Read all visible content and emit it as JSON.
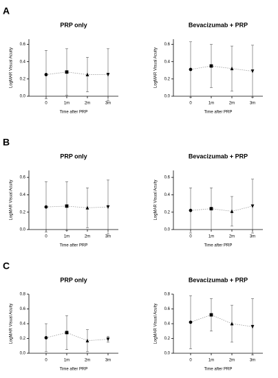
{
  "chart_data": [
    {
      "type": "line",
      "panel_label": "A",
      "title": "PRP only",
      "xlabel": "Time after PRP",
      "ylabel": "LogMAR Visual Acuity",
      "categories": [
        "0",
        "1m",
        "2m",
        "3m"
      ],
      "markers": [
        "circle",
        "square",
        "triangle-up",
        "triangle-down"
      ],
      "line_style": "dotted",
      "series": [
        {
          "color": "#000000",
          "values": [
            0.25,
            0.28,
            0.25,
            0.25
          ],
          "errors": [
            0.28,
            0.27,
            0.2,
            0.3
          ]
        }
      ],
      "ylim": [
        0,
        0.66
      ],
      "yticks": [
        {
          "value": 0,
          "label": "0.0"
        },
        0.2,
        0.4,
        0.6
      ]
    },
    {
      "type": "line",
      "title": "Bevacizumab + PRP",
      "xlabel": "Time after PRP",
      "ylabel": "LogMAR Visual Acuity",
      "categories": [
        "0",
        "1m",
        "2m",
        "3m"
      ],
      "markers": [
        "circle",
        "square",
        "triangle-up",
        "triangle-down"
      ],
      "line_style": "dotted",
      "series": [
        {
          "color": "#000000",
          "values": [
            0.31,
            0.35,
            0.32,
            0.29
          ],
          "errors": [
            0.32,
            0.25,
            0.26,
            0.3
          ]
        }
      ],
      "ylim": [
        0,
        0.66
      ],
      "yticks": [
        {
          "value": 0,
          "label": "0.0"
        },
        0.2,
        0.4,
        0.6
      ]
    },
    {
      "type": "line",
      "panel_label": "B",
      "title": "PRP only",
      "xlabel": "Time after PRP",
      "ylabel": "LogMAR Visual Acuity",
      "categories": [
        "0",
        "1m",
        "2m",
        "3m"
      ],
      "markers": [
        "circle",
        "square",
        "triangle-up",
        "triangle-down"
      ],
      "line_style": "dotted",
      "series": [
        {
          "color": "#000000",
          "values": [
            0.26,
            0.27,
            0.25,
            0.26
          ],
          "errors": [
            0.29,
            0.28,
            0.23,
            0.31
          ]
        }
      ],
      "ylim": [
        0,
        0.68
      ],
      "yticks": [
        {
          "value": 0,
          "label": "0.0"
        },
        0.2,
        0.4,
        0.6
      ]
    },
    {
      "type": "line",
      "title": "Bevacizumab + PRP",
      "xlabel": "Time after PRP",
      "ylabel": "LogMAR Visual Acuity",
      "categories": [
        "0",
        "1m",
        "2m",
        "3m"
      ],
      "markers": [
        "circle",
        "square",
        "triangle-up",
        "triangle-down"
      ],
      "line_style": "dotted",
      "series": [
        {
          "color": "#000000",
          "values": [
            0.22,
            0.24,
            0.21,
            0.27
          ],
          "errors": [
            0.26,
            0.24,
            0.17,
            0.31
          ]
        }
      ],
      "ylim": [
        0,
        0.68
      ],
      "yticks": [
        {
          "value": 0,
          "label": "0.0"
        },
        0.2,
        0.4,
        0.6
      ]
    },
    {
      "type": "line",
      "panel_label": "C",
      "title": "PRP only",
      "xlabel": "Time after PRP",
      "ylabel": "LogMAR Visual Acuity",
      "categories": [
        "0",
        "1m",
        "2m",
        "3m"
      ],
      "markers": [
        "circle",
        "square",
        "triangle-up",
        "triangle-down"
      ],
      "line_style": "dotted",
      "series": [
        {
          "color": "#000000",
          "values": [
            0.21,
            0.28,
            0.17,
            0.19
          ],
          "errors": [
            0.19,
            0.23,
            0.15,
            0.04
          ]
        }
      ],
      "ylim": [
        0,
        0.8
      ],
      "yticks": [
        {
          "value": 0,
          "label": "0.0"
        },
        0.2,
        0.4,
        0.6,
        0.8
      ]
    },
    {
      "type": "line",
      "title": "Bevacizumab + PRP",
      "xlabel": "Time after PRP",
      "ylabel": "LogMAR Visual Acuity",
      "categories": [
        "0",
        "1m",
        "2m",
        "3m"
      ],
      "markers": [
        "circle",
        "square",
        "triangle-up",
        "triangle-down"
      ],
      "line_style": "dotted",
      "series": [
        {
          "color": "#000000",
          "values": [
            0.42,
            0.52,
            0.4,
            0.36
          ],
          "errors": [
            0.36,
            0.22,
            0.25,
            0.38
          ]
        }
      ],
      "ylim": [
        0,
        0.8
      ],
      "yticks": [
        {
          "value": 0,
          "label": "0.0"
        },
        0.2,
        0.4,
        0.6,
        0.8
      ]
    }
  ]
}
